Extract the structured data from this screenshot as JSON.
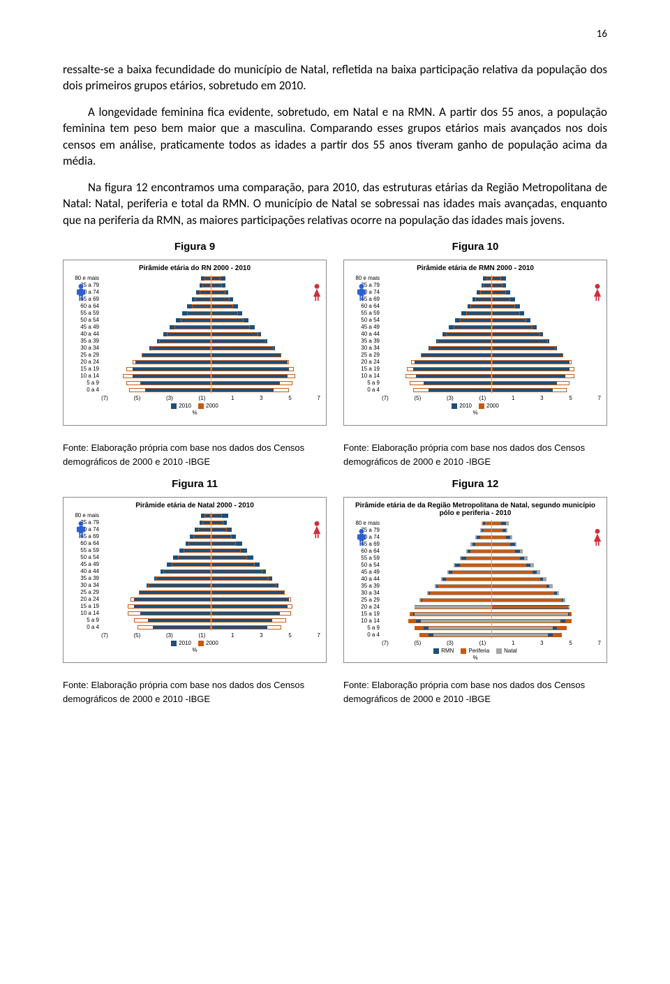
{
  "page_number": "16",
  "paragraphs": {
    "p1": "ressalte-se a baixa fecundidade do município de Natal, refletida na baixa participação relativa da população dos dois primeiros grupos etários, sobretudo em 2010.",
    "p2": "A longevidade feminina fica evidente, sobretudo, em Natal e na RMN. A partir dos 55 anos, a população feminina tem peso bem maior que a masculina. Comparando esses grupos etários mais avançados nos dois censos em análise, praticamente todos as idades a partir dos 55 anos tiveram ganho de população acima da média.",
    "p3": "Na figura 12 encontramos uma comparação, para 2010, das estruturas etárias da Região Metropolitana de Natal: Natal, periferia e total da RMN. O município de Natal se sobressai nas idades mais avançadas, enquanto que na periferia da RMN, as maiores participações relativas ocorre na população das idades mais jovens."
  },
  "figure_labels": {
    "f9": "Figura 9",
    "f10": "Figura 10",
    "f11": "Figura 11",
    "f12": "Figura 12"
  },
  "caption": "Fonte: Elaboração própria com base nos dados dos Censos demográficos de 2000 e 2010 -IBGE",
  "age_groups": [
    "80 e mais",
    "75 a 79",
    "70 a 74",
    "65 a 69",
    "60 a 64",
    "55 a 59",
    "50 a 54",
    "45 a 49",
    "40 a 44",
    "35 a 39",
    "30 a 34",
    "25 a 29",
    "20 a 24",
    "15 a 19",
    "10 a 14",
    "5 a 9",
    "0 a 4"
  ],
  "xticks_std": [
    "(7)",
    "(5)",
    "(3)",
    "(1)",
    "1",
    "3",
    "5",
    "7"
  ],
  "pct_label": "%",
  "colors": {
    "c2010": "#1f4e79",
    "c2000": "#c55a11",
    "c_rmn": "#1f4e79",
    "c_periferia": "#c55a11",
    "c_natal": "#a5a5a5",
    "male": "#2e5fd0",
    "female": "#d02e3a"
  },
  "charts": {
    "rn": {
      "title": "Pirâmide etária do RN 2000 - 2010",
      "legend": [
        [
          "2010",
          "c2010"
        ],
        [
          "2000",
          "c2000"
        ]
      ],
      "male2010": [
        0.6,
        0.7,
        0.9,
        1.2,
        1.5,
        1.8,
        2.2,
        2.6,
        3.0,
        3.4,
        3.9,
        4.4,
        4.8,
        5.0,
        5.0,
        4.5,
        4.2
      ],
      "female2010": [
        0.9,
        0.9,
        1.1,
        1.4,
        1.7,
        2.0,
        2.4,
        2.8,
        3.2,
        3.6,
        4.1,
        4.5,
        4.9,
        5.0,
        4.9,
        4.4,
        4.0
      ],
      "male2000": [
        0.4,
        0.5,
        0.7,
        1.0,
        1.2,
        1.5,
        1.9,
        2.3,
        2.8,
        3.3,
        3.8,
        4.4,
        5.0,
        5.4,
        5.6,
        5.4,
        5.2
      ],
      "female2000": [
        0.6,
        0.7,
        0.9,
        1.2,
        1.4,
        1.7,
        2.1,
        2.5,
        3.0,
        3.5,
        4.0,
        4.5,
        5.0,
        5.3,
        5.4,
        5.2,
        5.0
      ],
      "xmax": 7
    },
    "rmn": {
      "title": "Pirâmide etária de RMN 2000 - 2010",
      "legend": [
        [
          "2010",
          "c2010"
        ],
        [
          "2000",
          "c2000"
        ]
      ],
      "male2010": [
        0.5,
        0.6,
        0.9,
        1.2,
        1.5,
        1.9,
        2.3,
        2.7,
        3.1,
        3.5,
        4.0,
        4.5,
        4.9,
        5.0,
        4.8,
        4.3,
        4.0
      ],
      "female2010": [
        0.9,
        0.9,
        1.2,
        1.5,
        1.8,
        2.1,
        2.5,
        2.9,
        3.3,
        3.7,
        4.2,
        4.6,
        5.0,
        5.0,
        4.7,
        4.2,
        3.9
      ],
      "male2000": [
        0.3,
        0.5,
        0.7,
        1.0,
        1.3,
        1.6,
        2.0,
        2.4,
        2.9,
        3.4,
        3.9,
        4.5,
        5.1,
        5.4,
        5.5,
        5.2,
        5.0
      ],
      "female2000": [
        0.6,
        0.7,
        0.9,
        1.2,
        1.5,
        1.8,
        2.2,
        2.6,
        3.1,
        3.6,
        4.1,
        4.6,
        5.1,
        5.3,
        5.3,
        5.0,
        4.8
      ],
      "xmax": 7
    },
    "natal": {
      "title": "Pirâmide etária de Natal 2000 - 2010",
      "legend": [
        [
          "2010",
          "c2010"
        ],
        [
          "2000",
          "c2000"
        ]
      ],
      "male2010": [
        0.6,
        0.7,
        1.0,
        1.3,
        1.6,
        2.0,
        2.4,
        2.8,
        3.2,
        3.6,
        4.1,
        4.6,
        4.9,
        4.9,
        4.5,
        4.0,
        3.7
      ],
      "female2010": [
        1.1,
        1.0,
        1.3,
        1.6,
        2.0,
        2.3,
        2.7,
        3.1,
        3.5,
        3.9,
        4.3,
        4.7,
        5.0,
        4.9,
        4.4,
        3.9,
        3.6
      ],
      "male2000": [
        0.4,
        0.5,
        0.8,
        1.1,
        1.4,
        1.7,
        2.1,
        2.5,
        3.0,
        3.5,
        4.0,
        4.6,
        5.1,
        5.3,
        5.3,
        4.9,
        4.7
      ],
      "female2000": [
        0.7,
        0.8,
        1.0,
        1.3,
        1.6,
        1.9,
        2.3,
        2.8,
        3.3,
        3.7,
        4.2,
        4.7,
        5.1,
        5.2,
        5.1,
        4.8,
        4.5
      ],
      "xmax": 7
    },
    "comp": {
      "title": "Pirâmide etária de da Região Metropolitana de Natal, segundo município pólo e periferia - 2010",
      "legend": [
        [
          "RMN",
          "c_rmn"
        ],
        [
          "Periferia",
          "c_periferia"
        ],
        [
          "Natal",
          "c_natal"
        ]
      ],
      "series": {
        "rmn_m": [
          0.5,
          0.6,
          0.9,
          1.2,
          1.5,
          1.9,
          2.3,
          2.7,
          3.1,
          3.5,
          4.0,
          4.5,
          4.9,
          5.0,
          4.8,
          4.3,
          4.0
        ],
        "rmn_f": [
          0.9,
          0.9,
          1.2,
          1.5,
          1.8,
          2.1,
          2.5,
          2.9,
          3.3,
          3.7,
          4.2,
          4.6,
          5.0,
          5.0,
          4.7,
          4.2,
          3.9
        ],
        "per_m": [
          0.4,
          0.5,
          0.7,
          1.0,
          1.3,
          1.6,
          2.0,
          2.5,
          2.9,
          3.4,
          3.9,
          4.4,
          4.9,
          5.2,
          5.3,
          4.9,
          4.6
        ],
        "per_f": [
          0.6,
          0.7,
          0.9,
          1.2,
          1.5,
          1.8,
          2.2,
          2.6,
          3.1,
          3.5,
          4.0,
          4.5,
          4.9,
          5.1,
          5.1,
          4.8,
          4.5
        ],
        "nat_m": [
          0.6,
          0.7,
          1.0,
          1.3,
          1.6,
          2.0,
          2.4,
          2.8,
          3.2,
          3.6,
          4.1,
          4.6,
          4.9,
          4.9,
          4.5,
          4.0,
          3.7
        ],
        "nat_f": [
          1.1,
          1.0,
          1.3,
          1.6,
          2.0,
          2.3,
          2.7,
          3.1,
          3.5,
          3.9,
          4.3,
          4.7,
          5.0,
          4.9,
          4.4,
          3.9,
          3.6
        ]
      },
      "xmax": 7
    }
  }
}
